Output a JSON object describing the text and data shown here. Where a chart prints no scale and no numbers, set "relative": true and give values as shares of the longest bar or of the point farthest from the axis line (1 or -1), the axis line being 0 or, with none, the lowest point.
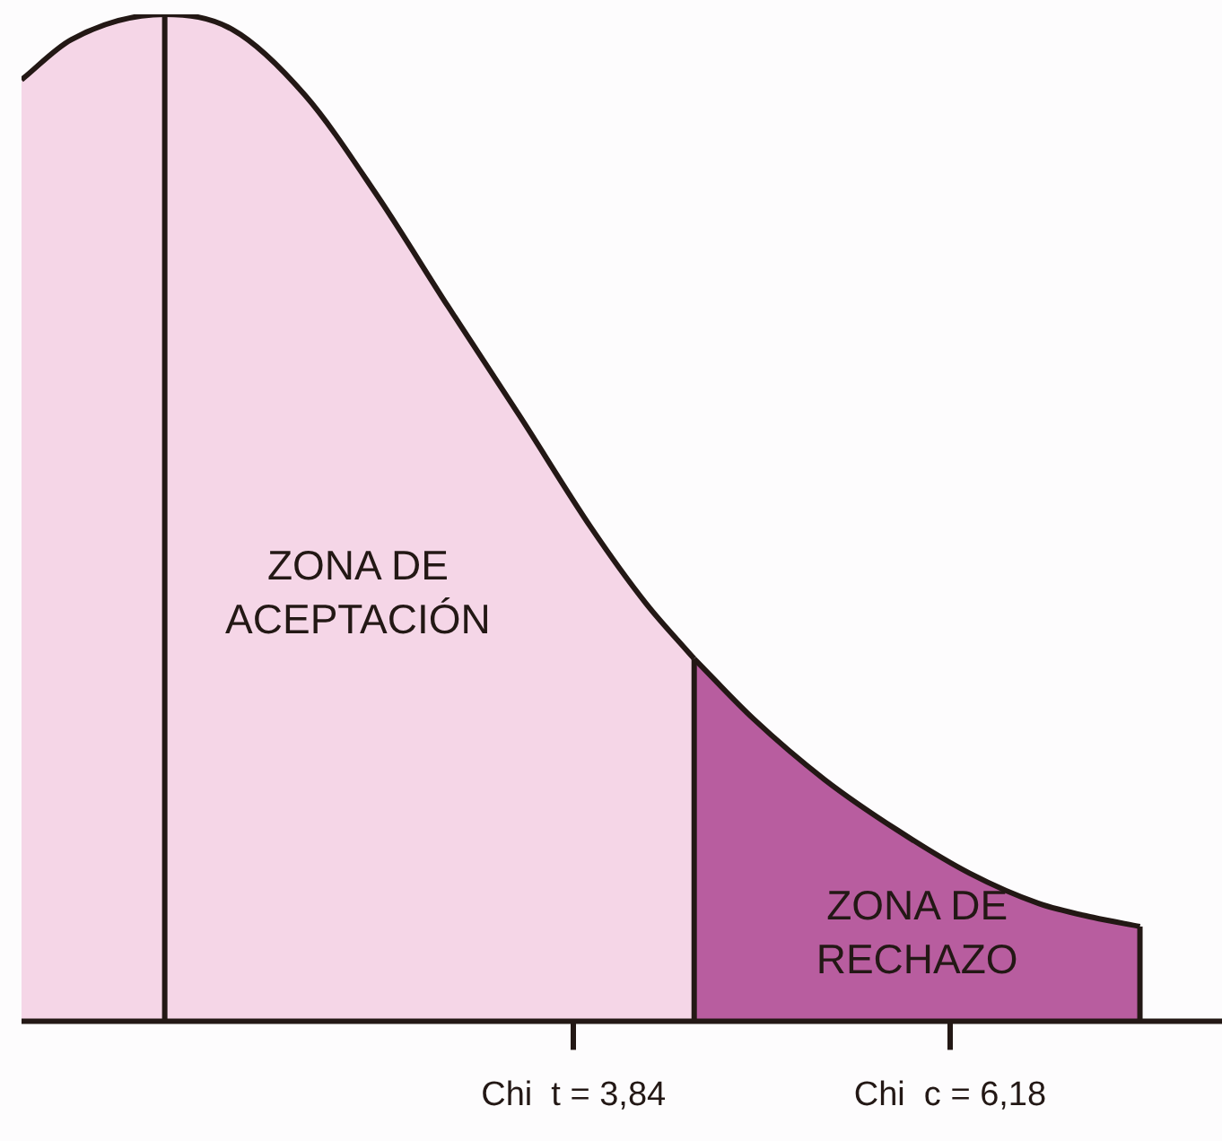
{
  "chart_data": {
    "type": "area",
    "relative": true,
    "xlim": [
      0.41,
      7.87
    ],
    "xticks": [
      {
        "value": 3.84,
        "label": "Chi  t = 3,84"
      },
      {
        "value": 6.18,
        "label": "Chi  c = 6,18"
      }
    ],
    "series": [
      {
        "name": "ZONA DE ACEPTACIÓN",
        "color": "#f5d6e7",
        "x": [
          0.41,
          0.72,
          1.3,
          1.72,
          2.17,
          2.62,
          3.06,
          3.51,
          3.95,
          4.29,
          4.59
        ],
        "values": [
          0.935,
          0.975,
          1,
          0.985,
          0.92,
          0.82,
          0.71,
          0.6,
          0.49,
          0.415,
          0.36
        ]
      },
      {
        "name": "ZONA DE RECHAZO",
        "color": "#b85d9f",
        "x": [
          4.59,
          4.96,
          5.4,
          5.85,
          6.3,
          6.73,
          7.07,
          7.36
        ],
        "values": [
          0.36,
          0.3,
          0.24,
          0.19,
          0.147,
          0.117,
          0.103,
          0.094
        ]
      }
    ],
    "ref_lines": [
      {
        "axis": "x",
        "value": 1.3,
        "color": "#231815"
      },
      {
        "axis": "x",
        "value": 4.59,
        "color": "#231815"
      },
      {
        "axis": "x",
        "value": 7.36,
        "color": "#231815"
      }
    ],
    "grid": false,
    "legend": false
  }
}
